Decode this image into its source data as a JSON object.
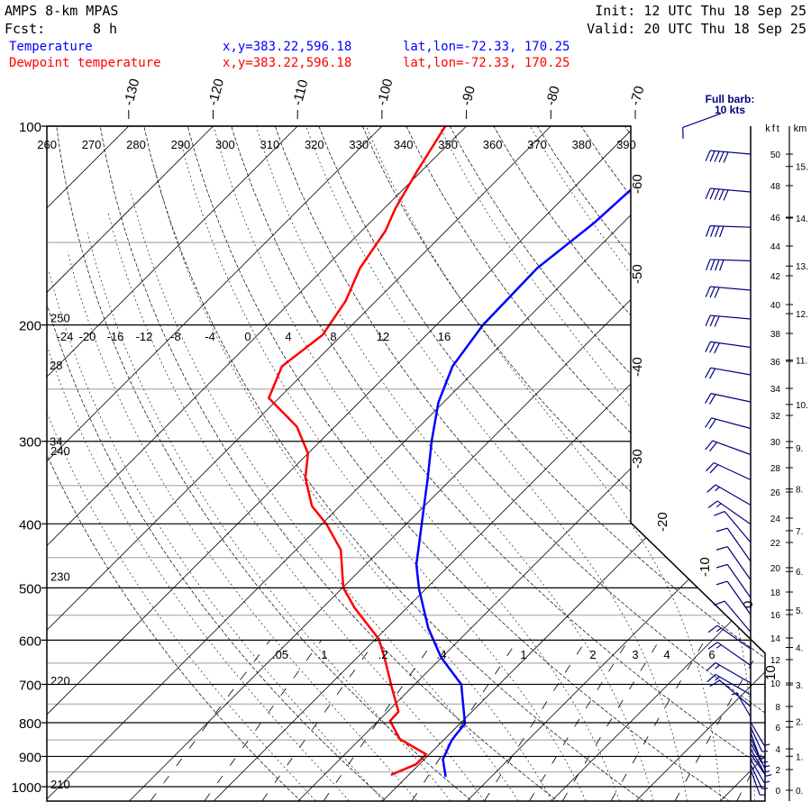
{
  "header": {
    "model": "AMPS 8-km MPAS",
    "forecast_label": "Fcst:",
    "forecast_value": "8 h",
    "init": "Init: 12 UTC Thu 18 Sep 25",
    "valid": "Valid: 20 UTC Thu 18 Sep 25"
  },
  "legend": [
    {
      "name": "Temperature",
      "xy": "x,y=383.22,596.18",
      "latlon": "lat,lon=-72.33, 170.25",
      "color": "#0000ff"
    },
    {
      "name": "Dewpoint temperature",
      "xy": "x,y=383.22,596.18",
      "latlon": "lat,lon=-72.33, 170.25",
      "color": "#ff0000"
    }
  ],
  "barb_legend": {
    "line1": "Full barb:",
    "line2": "10 kts"
  },
  "chart_data": {
    "type": "line",
    "y_axis": {
      "ticks": [
        100,
        200,
        300,
        400,
        500,
        600,
        700,
        800,
        900,
        1000
      ],
      "range": [
        1000,
        100
      ]
    },
    "isotherm_labels_top": [
      -130,
      -120,
      -110,
      -100,
      -90,
      -80,
      -70
    ],
    "isotherm_labels_right": [
      -60,
      -50,
      -40,
      -30,
      -20,
      -10,
      0,
      10
    ],
    "dry_adiabat_labels": [
      260,
      270,
      280,
      290,
      300,
      310,
      320,
      330,
      340,
      350,
      360,
      370,
      380,
      390
    ],
    "left_theta_labels": [
      {
        "text": "250",
        "p": 195
      },
      {
        "text": "28",
        "p": 230
      },
      {
        "text": "34",
        "p": 300
      },
      {
        "text": "240",
        "p": 310
      },
      {
        "text": "230",
        "p": 480
      },
      {
        "text": "220",
        "p": 690
      },
      {
        "text": "210",
        "p": 990
      }
    ],
    "moist_adiabat_labels": [
      -24,
      -20,
      -16,
      -12,
      -8,
      -4,
      0,
      4,
      8,
      12,
      16
    ],
    "mixing_ratio_labels": [
      ".05",
      ".1",
      ".2",
      ".4",
      "1",
      "2",
      "3",
      "4",
      "6"
    ],
    "series": [
      {
        "name": "Temperature",
        "color": "#0000ff",
        "pressure": [
          100,
          118,
          140,
          164,
          200,
          231,
          262,
          300,
          341,
          400,
          461,
          502,
          575,
          637,
          700,
          803,
          831,
          851,
          909,
          966
        ],
        "temperature": [
          -60.6,
          -62.8,
          -63.4,
          -64.8,
          -64.5,
          -63.2,
          -60.6,
          -56.8,
          -52.9,
          -48.2,
          -44.0,
          -40.8,
          -35.1,
          -30.1,
          -24.5,
          -19.4,
          -19.2,
          -19.0,
          -17.8,
          -15.4
        ]
      },
      {
        "name": "Dewpoint temperature",
        "color": "#ff0000",
        "pressure": [
          100,
          117,
          133,
          144,
          164,
          184,
          207,
          231,
          258,
          285,
          313,
          341,
          376,
          400,
          438,
          500,
          536,
          598,
          637,
          707,
          770,
          795,
          847,
          893,
          925,
          960
        ],
        "temperature": [
          -92.5,
          -90.5,
          -88.7,
          -87.2,
          -85.8,
          -83.6,
          -82.3,
          -83.4,
          -81.2,
          -74.5,
          -70.0,
          -67.4,
          -63.3,
          -59.5,
          -54.7,
          -49.9,
          -46.2,
          -39.6,
          -36.8,
          -32.4,
          -28.7,
          -28.6,
          -25.3,
          -20.4,
          -20.4,
          -22.1
        ]
      }
    ],
    "winds": {
      "units": "kts",
      "kft": [
        50,
        47.6,
        45.3,
        43,
        41,
        39,
        37,
        35,
        33,
        31,
        29,
        27,
        25,
        23.5,
        22,
        20.5,
        19,
        17.5,
        16,
        14.5,
        13,
        11.5,
        10,
        9,
        8,
        7,
        6.5,
        6,
        5.5,
        5,
        4.5,
        4,
        3.5,
        3,
        2.5,
        2
      ],
      "speed": [
        50,
        50,
        40,
        40,
        30,
        30,
        30,
        20,
        20,
        20,
        20,
        20,
        15,
        15,
        10,
        10,
        10,
        10,
        10,
        10,
        15,
        15,
        15,
        15,
        10,
        5,
        5,
        5,
        5,
        5,
        5,
        5,
        5,
        5,
        5,
        5
      ],
      "direction": [
        275,
        275,
        272,
        272,
        275,
        275,
        278,
        280,
        282,
        285,
        290,
        295,
        300,
        305,
        320,
        325,
        325,
        325,
        325,
        320,
        305,
        305,
        300,
        300,
        310,
        330,
        150,
        155,
        160,
        155,
        150,
        150,
        145,
        150,
        155,
        160
      ]
    },
    "kft_axis": {
      "label": "kft",
      "ticks": [
        0,
        2,
        4,
        6,
        8,
        10,
        12,
        14,
        16,
        18,
        20,
        22,
        24,
        26,
        28,
        30,
        32,
        34,
        36,
        38,
        40,
        42,
        44,
        46,
        48,
        50
      ]
    },
    "km_axis": {
      "label": "km",
      "ticks": [
        "0.",
        "1.",
        "2.",
        "3.",
        "4.",
        "5.",
        "6.",
        "7.",
        "8.",
        "9.",
        "10.",
        "11.",
        "12.",
        "13.",
        "14.",
        "15."
      ]
    }
  }
}
